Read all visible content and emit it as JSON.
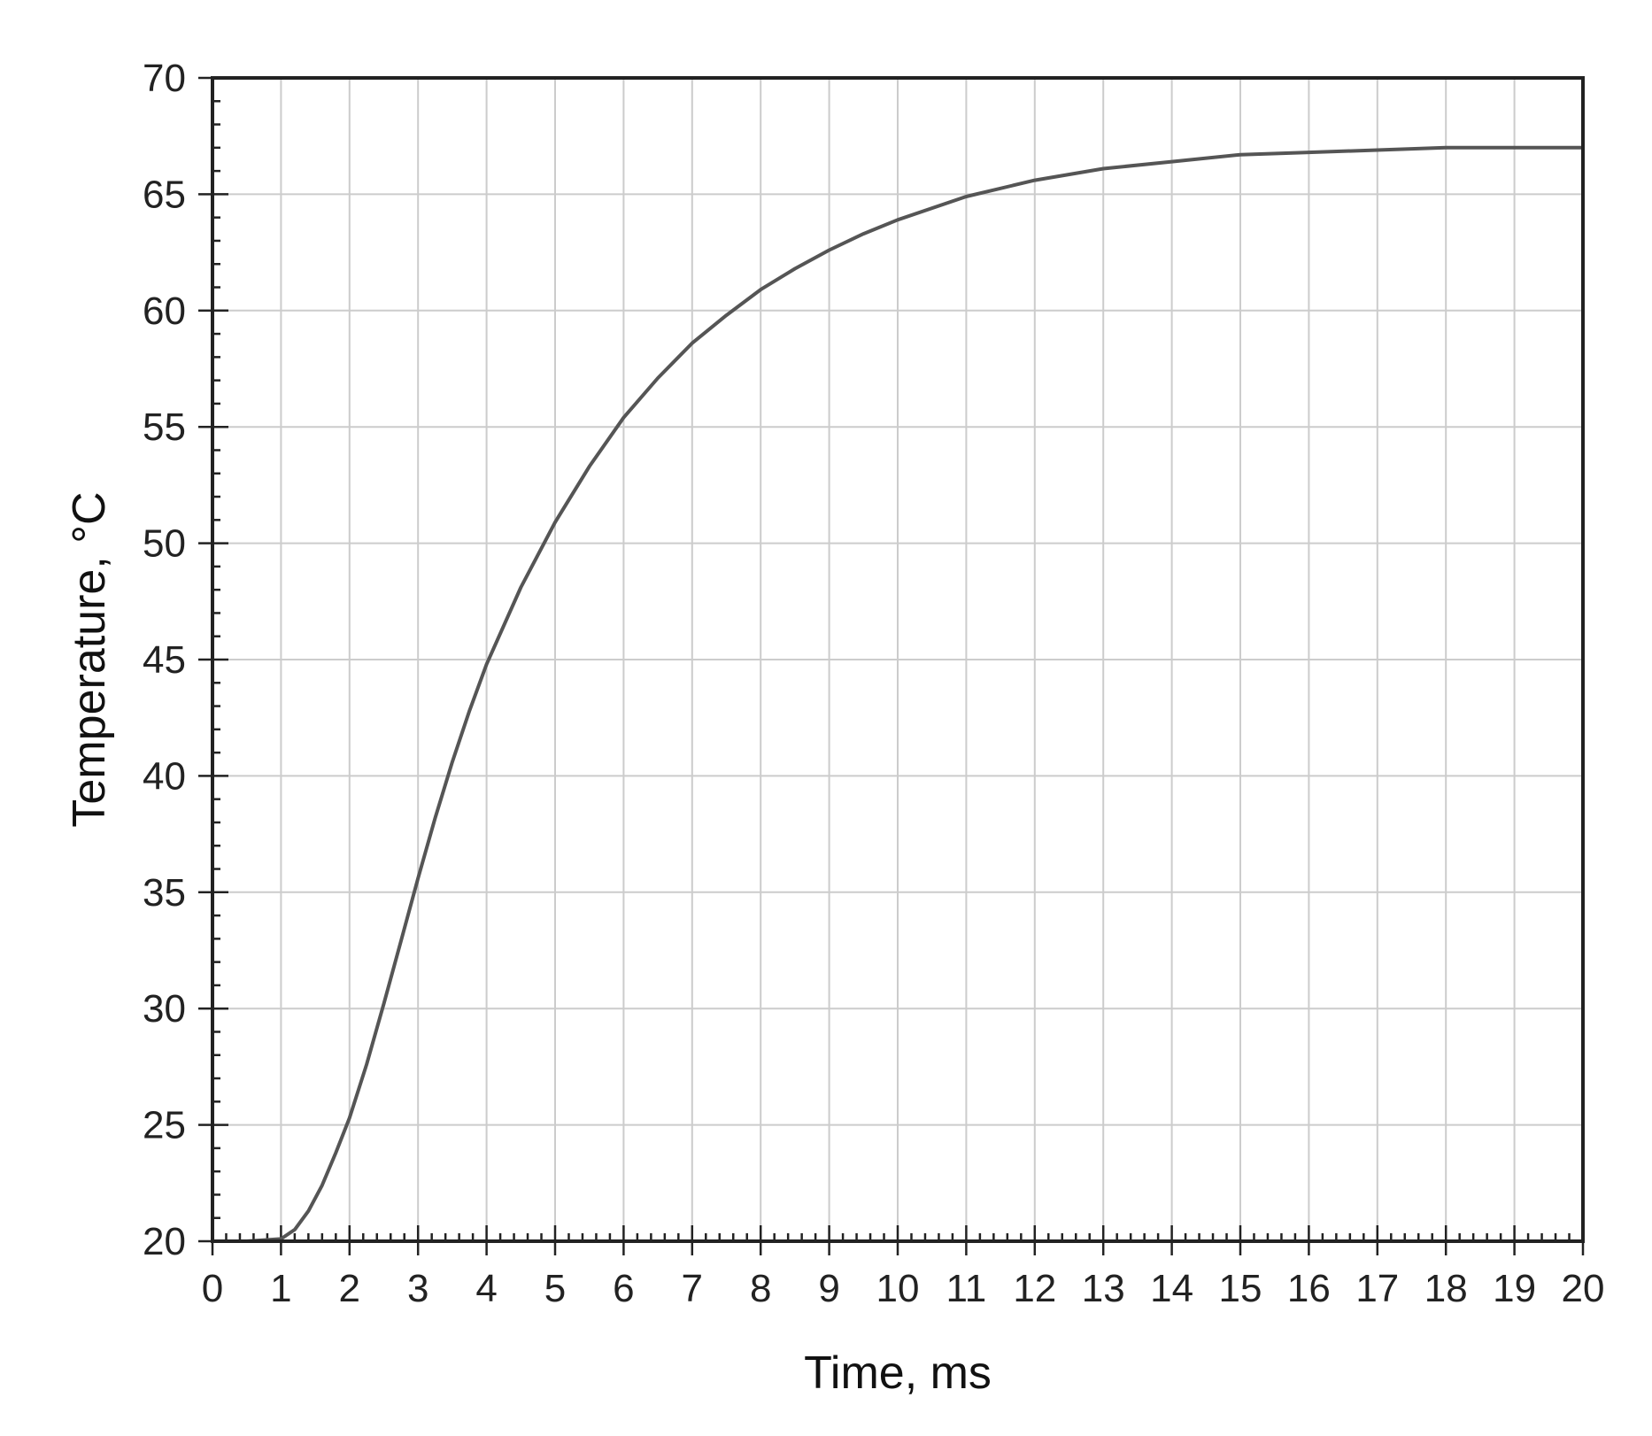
{
  "chart_data": {
    "type": "line",
    "title": "",
    "xlabel": "Time, ms",
    "ylabel": "Temperature, °C",
    "xlim": [
      0,
      20
    ],
    "ylim": [
      20,
      70
    ],
    "x_ticks": [
      0,
      1,
      2,
      3,
      4,
      5,
      6,
      7,
      8,
      9,
      10,
      11,
      12,
      13,
      14,
      15,
      16,
      17,
      18,
      19,
      20
    ],
    "y_ticks": [
      20,
      25,
      30,
      35,
      40,
      45,
      50,
      55,
      60,
      65,
      70
    ],
    "grid": true,
    "colors": {
      "line": "#555555",
      "grid": "#cccccc",
      "axis": "#222222"
    },
    "series": [
      {
        "x": [
          0,
          0.5,
          1,
          1.2,
          1.4,
          1.6,
          1.8,
          2,
          2.25,
          2.5,
          2.75,
          3,
          3.25,
          3.5,
          3.75,
          4,
          4.5,
          5,
          5.5,
          6,
          6.5,
          7,
          7.5,
          8,
          8.5,
          9,
          9.5,
          10,
          11,
          12,
          13,
          14,
          15,
          16,
          17,
          18,
          19,
          20
        ],
        "y": [
          20,
          20,
          20.1,
          20.5,
          21.3,
          22.4,
          23.8,
          25.3,
          27.6,
          30.2,
          32.9,
          35.6,
          38.2,
          40.6,
          42.8,
          44.8,
          48.1,
          50.9,
          53.3,
          55.4,
          57.1,
          58.6,
          59.8,
          60.9,
          61.8,
          62.6,
          63.3,
          63.9,
          64.9,
          65.6,
          66.1,
          66.4,
          66.7,
          66.8,
          66.9,
          67.0,
          67.0,
          67.0
        ]
      }
    ]
  }
}
